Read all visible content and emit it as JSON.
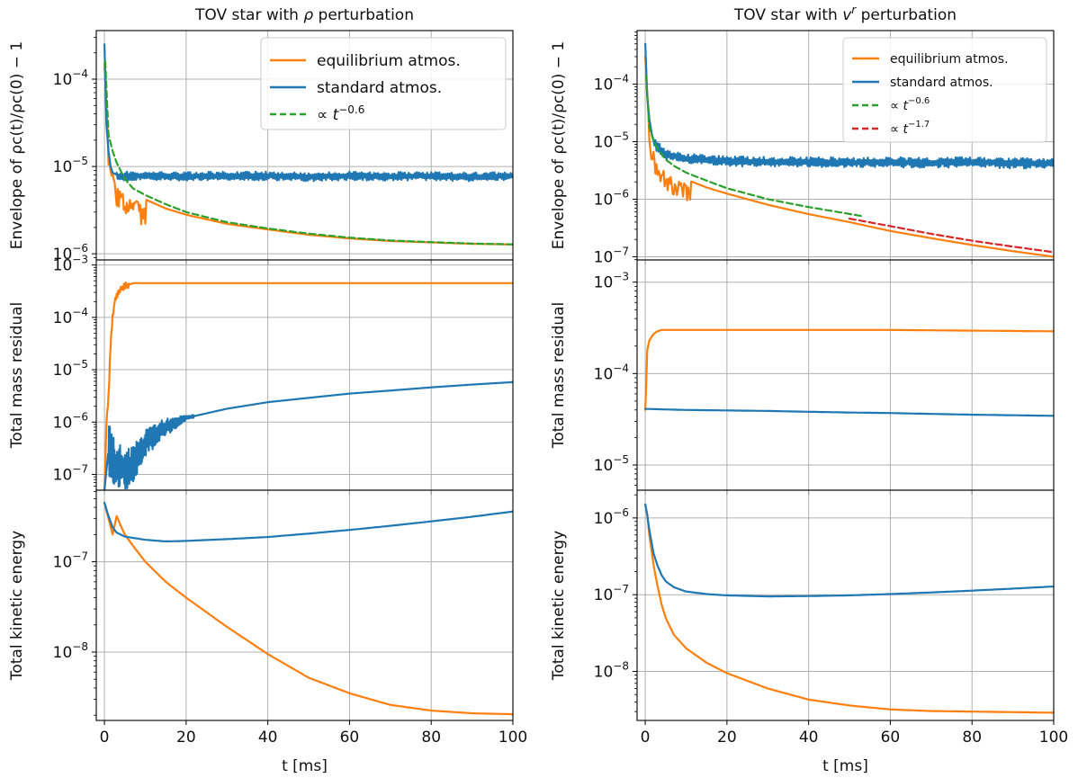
{
  "colors": {
    "equilibrium": "#ff7f0e",
    "standard": "#1f77b4",
    "fit_green": "#2ca02c",
    "fit_red": "#d62728"
  },
  "chart_data": [
    {
      "type": "line",
      "column": "left",
      "row": "envelope",
      "title": "TOV star with ρ perturbation",
      "title_parts": [
        "TOV star with ",
        "ρ",
        " perturbation"
      ],
      "ylabel": "Envelope of ρc(t)/ρc(0) − 1",
      "xlim": [
        -2,
        100
      ],
      "ylim": [
        8.5e-07,
        0.00036
      ],
      "yscale": "log",
      "grid": true,
      "legend": "top-right",
      "series": [
        {
          "name": "equilibrium atmos.",
          "key": "equilibrium",
          "x": [
            0,
            1,
            2,
            3,
            5,
            7,
            10,
            15,
            20,
            30,
            40,
            50,
            60,
            70,
            80,
            90,
            100
          ],
          "y": [
            0.00015,
            1.5e-05,
            1e-05,
            7.5e-06,
            6e-06,
            5e-06,
            4.2e-06,
            3.3e-06,
            2.8e-06,
            2.2e-06,
            1.9e-06,
            1.65e-06,
            1.5e-06,
            1.4e-06,
            1.35e-06,
            1.3e-06,
            1.28e-06
          ]
        },
        {
          "name": "standard atmos.",
          "key": "standard",
          "x": [
            0,
            0.5,
            1,
            1.5,
            2,
            3,
            4,
            5,
            10,
            20,
            30,
            40,
            50,
            60,
            70,
            80,
            90,
            100
          ],
          "y": [
            0.00025,
            3e-05,
            1.5e-05,
            1e-05,
            8.5e-06,
            8e-06,
            7.6e-06,
            7.8e-06,
            7.8e-06,
            7.7e-06,
            7.8e-06,
            7.8e-06,
            7.6e-06,
            7.8e-06,
            7.7e-06,
            7.8e-06,
            7.6e-06,
            7.8e-06
          ]
        },
        {
          "name": "∝ t^−0.6",
          "key": "fit_green",
          "dash": true,
          "x": [
            0.2,
            1,
            2,
            3,
            5,
            7,
            10,
            15,
            20,
            30,
            40,
            50,
            60,
            70,
            80,
            90,
            100
          ],
          "y": [
            0.00016,
            2.3e-05,
            1.5e-05,
            1.1e-05,
            7.2e-06,
            5.6e-06,
            4.7e-06,
            3.7e-06,
            3e-06,
            2.3e-06,
            1.95e-06,
            1.7e-06,
            1.53e-06,
            1.42e-06,
            1.36e-06,
            1.31e-06,
            1.28e-06
          ]
        }
      ],
      "yticks": [
        {
          "base": "10",
          "exp": "−6",
          "value": 1e-06
        },
        {
          "base": "10",
          "exp": "−5",
          "value": 1e-05
        },
        {
          "base": "10",
          "exp": "−4",
          "value": 0.0001
        }
      ],
      "legend_entries": [
        {
          "label": "equilibrium atmos.",
          "key": "equilibrium"
        },
        {
          "label": "standard atmos.",
          "key": "standard"
        },
        {
          "label_prefix": "∝ ",
          "label_var": "t",
          "label_exp": "−0.6",
          "key": "fit_green",
          "dash": true
        }
      ]
    },
    {
      "type": "line",
      "column": "left",
      "row": "mass",
      "ylabel": "Total mass residual",
      "xlim": [
        -2,
        100
      ],
      "ylim": [
        5e-08,
        0.00125
      ],
      "yscale": "log",
      "grid": true,
      "series": [
        {
          "name": "equilibrium atmos.",
          "key": "equilibrium",
          "x": [
            0,
            0.5,
            1,
            1.5,
            2,
            2.5,
            3,
            3.5,
            4,
            5,
            6,
            7,
            10,
            20,
            40,
            60,
            80,
            100
          ],
          "y": [
            5e-08,
            1e-06,
            3e-06,
            3e-05,
            0.0001,
            0.0002,
            0.00025,
            0.0003,
            0.00035,
            0.0004,
            0.00042,
            0.00045,
            0.00045,
            0.00045,
            0.00045,
            0.00045,
            0.00045,
            0.00045
          ]
        },
        {
          "name": "standard atmos.",
          "key": "standard",
          "x": [
            0,
            1,
            2,
            3,
            5,
            7,
            10,
            15,
            20,
            30,
            40,
            50,
            60,
            70,
            80,
            90,
            100
          ],
          "y": [
            5e-08,
            3e-07,
            2e-07,
            1.5e-07,
            1.2e-07,
            1.5e-07,
            4e-07,
            8e-07,
            1.2e-06,
            1.8e-06,
            2.4e-06,
            2.9e-06,
            3.5e-06,
            4e-06,
            4.6e-06,
            5.2e-06,
            5.8e-06
          ]
        }
      ],
      "yticks": [
        {
          "base": "10",
          "exp": "−7",
          "value": 1e-07
        },
        {
          "base": "10",
          "exp": "−6",
          "value": 1e-06
        },
        {
          "base": "10",
          "exp": "−5",
          "value": 1e-05
        },
        {
          "base": "10",
          "exp": "−4",
          "value": 0.0001
        },
        {
          "base": "10",
          "exp": "−3",
          "value": 0.001
        }
      ]
    },
    {
      "type": "line",
      "column": "left",
      "row": "kinetic",
      "ylabel": "Total kinetic energy",
      "xlabel": "t [ms]",
      "xlim": [
        -2,
        100
      ],
      "ylim": [
        1.75e-09,
        6.2e-07
      ],
      "yscale": "log",
      "grid": true,
      "series": [
        {
          "name": "equilibrium atmos.",
          "key": "equilibrium",
          "x": [
            0,
            1,
            2,
            3,
            4,
            5,
            7,
            10,
            15,
            20,
            30,
            40,
            50,
            60,
            70,
            80,
            90,
            100
          ],
          "y": [
            4.5e-07,
            3e-07,
            2e-07,
            3.2e-07,
            2.5e-07,
            2e-07,
            1.5e-07,
            1e-07,
            6e-08,
            4e-08,
            1.9e-08,
            9.5e-09,
            5.2e-09,
            3.5e-09,
            2.6e-09,
            2.25e-09,
            2.1e-09,
            2.05e-09
          ]
        },
        {
          "name": "standard atmos.",
          "key": "standard",
          "x": [
            0,
            1,
            2,
            3,
            5,
            10,
            15,
            20,
            30,
            40,
            50,
            60,
            70,
            80,
            90,
            100
          ],
          "y": [
            4.5e-07,
            3.2e-07,
            2.4e-07,
            2.1e-07,
            1.9e-07,
            1.75e-07,
            1.68e-07,
            1.7e-07,
            1.78e-07,
            1.88e-07,
            2.05e-07,
            2.25e-07,
            2.5e-07,
            2.8e-07,
            3.15e-07,
            3.6e-07
          ]
        }
      ],
      "yticks": [
        {
          "base": "10",
          "exp": "−8",
          "value": 1e-08
        },
        {
          "base": "10",
          "exp": "−7",
          "value": 1e-07
        }
      ]
    },
    {
      "type": "line",
      "column": "right",
      "row": "envelope",
      "title": "TOV star with vr perturbation",
      "title_parts": [
        "TOV star with ",
        "v",
        "r",
        " perturbation"
      ],
      "ylabel": "Envelope of ρc(t)/ρc(0) − 1",
      "xlim": [
        -2,
        100
      ],
      "ylim": [
        8.8e-08,
        0.00085
      ],
      "yscale": "log",
      "grid": true,
      "legend": "top-right",
      "series": [
        {
          "name": "equilibrium atmos.",
          "key": "equilibrium",
          "x": [
            0,
            1,
            2,
            3,
            5,
            7,
            10,
            15,
            20,
            30,
            40,
            50,
            60,
            70,
            80,
            90,
            100
          ],
          "y": [
            0.0003,
            1.5e-05,
            8e-06,
            5e-06,
            3.5e-06,
            2.8e-06,
            2.2e-06,
            1.6e-06,
            1.25e-06,
            8e-07,
            5.5e-07,
            4e-07,
            2.8e-07,
            2.1e-07,
            1.6e-07,
            1.25e-07,
            1e-07
          ]
        },
        {
          "name": "standard atmos.",
          "key": "standard",
          "x": [
            0,
            0.5,
            1,
            1.5,
            2,
            3,
            5,
            10,
            20,
            30,
            40,
            50,
            60,
            70,
            80,
            90,
            100
          ],
          "y": [
            0.0005,
            6e-05,
            2.5e-05,
            1.5e-05,
            1e-05,
            8e-06,
            6e-06,
            5e-06,
            4.6e-06,
            4.4e-06,
            4.5e-06,
            4.3e-06,
            4.4e-06,
            4.3e-06,
            4.4e-06,
            4.2e-06,
            4.2e-06
          ]
        },
        {
          "name": "∝ t^−0.6",
          "key": "fit_green",
          "dash": true,
          "x": [
            0.2,
            1,
            2,
            3,
            5,
            7,
            10,
            15,
            20,
            30,
            40,
            53
          ],
          "y": [
            0.00014,
            1.8e-05,
            1.05e-05,
            7.5e-06,
            4.9e-06,
            3.8e-06,
            2.9e-06,
            2.1e-06,
            1.55e-06,
            1e-06,
            7.3e-07,
            5.1e-07
          ]
        },
        {
          "name": "∝ t^−1.7",
          "key": "fit_red",
          "dash": true,
          "x": [
            50,
            60,
            70,
            80,
            90,
            100
          ],
          "y": [
            4.6e-07,
            3.4e-07,
            2.5e-07,
            1.9e-07,
            1.5e-07,
            1.2e-07
          ]
        }
      ],
      "yticks": [
        {
          "base": "10",
          "exp": "−7",
          "value": 1e-07
        },
        {
          "base": "10",
          "exp": "−6",
          "value": 1e-06
        },
        {
          "base": "10",
          "exp": "−5",
          "value": 1e-05
        },
        {
          "base": "10",
          "exp": "−4",
          "value": 0.0001
        }
      ],
      "legend_entries": [
        {
          "label": "equilibrium atmos.",
          "key": "equilibrium"
        },
        {
          "label": "standard atmos.",
          "key": "standard"
        },
        {
          "label_prefix": "∝ ",
          "label_var": "t",
          "label_exp": "−0.6",
          "key": "fit_green",
          "dash": true
        },
        {
          "label_prefix": "∝ ",
          "label_var": "t",
          "label_exp": "−1.7",
          "key": "fit_red",
          "dash": true
        }
      ]
    },
    {
      "type": "line",
      "column": "right",
      "row": "mass",
      "ylabel": "Total mass residual",
      "xlim": [
        -2,
        100
      ],
      "ylim": [
        5.3e-06,
        0.00175
      ],
      "yscale": "log",
      "grid": true,
      "series": [
        {
          "name": "equilibrium atmos.",
          "key": "equilibrium",
          "x": [
            0,
            0.2,
            0.5,
            1,
            1.5,
            2,
            3,
            4,
            5,
            10,
            20,
            40,
            60,
            80,
            100
          ],
          "y": [
            4e-05,
            7e-05,
            0.00018,
            0.00023,
            0.00025,
            0.00027,
            0.00029,
            0.0003,
            0.0003,
            0.0003,
            0.0003,
            0.0003,
            0.0003,
            0.000295,
            0.00029
          ]
        },
        {
          "name": "standard atmos.",
          "key": "standard",
          "x": [
            0,
            1,
            5,
            10,
            20,
            30,
            40,
            50,
            60,
            70,
            80,
            90,
            100
          ],
          "y": [
            4.1e-05,
            4.1e-05,
            4.05e-05,
            4e-05,
            3.95e-05,
            3.9e-05,
            3.82e-05,
            3.75e-05,
            3.7e-05,
            3.62e-05,
            3.55e-05,
            3.5e-05,
            3.45e-05
          ]
        }
      ],
      "yticks": [
        {
          "base": "10",
          "exp": "−5",
          "value": 1e-05
        },
        {
          "base": "10",
          "exp": "−4",
          "value": 0.0001
        },
        {
          "base": "10",
          "exp": "−3",
          "value": 0.001
        }
      ]
    },
    {
      "type": "line",
      "column": "right",
      "row": "kinetic",
      "ylabel": "Total kinetic energy",
      "xlabel": "t [ms]",
      "xlim": [
        -2,
        100
      ],
      "ylim": [
        2.3e-09,
        2.3e-06
      ],
      "yscale": "log",
      "grid": true,
      "series": [
        {
          "name": "equilibrium atmos.",
          "key": "equilibrium",
          "x": [
            0,
            0.5,
            1,
            2,
            3,
            4,
            5,
            7,
            10,
            15,
            20,
            30,
            40,
            50,
            60,
            70,
            80,
            90,
            100
          ],
          "y": [
            1.5e-06,
            1.1e-06,
            6e-07,
            2.5e-07,
            1.3e-07,
            7.5e-08,
            5e-08,
            3e-08,
            2e-08,
            1.3e-08,
            9.5e-09,
            6e-09,
            4.3e-09,
            3.6e-09,
            3.2e-09,
            3.05e-09,
            3e-09,
            2.95e-09,
            2.9e-09
          ]
        },
        {
          "name": "standard atmos.",
          "key": "standard",
          "x": [
            0,
            0.5,
            1,
            2,
            3,
            4,
            5,
            7,
            10,
            15,
            20,
            30,
            40,
            50,
            60,
            70,
            80,
            90,
            100
          ],
          "y": [
            1.5e-06,
            1.1e-06,
            7e-07,
            3.5e-07,
            2.4e-07,
            1.8e-07,
            1.5e-07,
            1.25e-07,
            1.1e-07,
            1.02e-07,
            9.8e-08,
            9.5e-08,
            9.6e-08,
            9.8e-08,
            1.02e-07,
            1.07e-07,
            1.13e-07,
            1.2e-07,
            1.28e-07
          ]
        }
      ],
      "yticks": [
        {
          "base": "10",
          "exp": "−8",
          "value": 1e-08
        },
        {
          "base": "10",
          "exp": "−7",
          "value": 1e-07
        },
        {
          "base": "10",
          "exp": "−6",
          "value": 1e-06
        }
      ]
    }
  ],
  "xticks": [
    "0",
    "20",
    "40",
    "60",
    "80",
    "100"
  ],
  "xtick_values": [
    0,
    20,
    40,
    60,
    80,
    100
  ]
}
